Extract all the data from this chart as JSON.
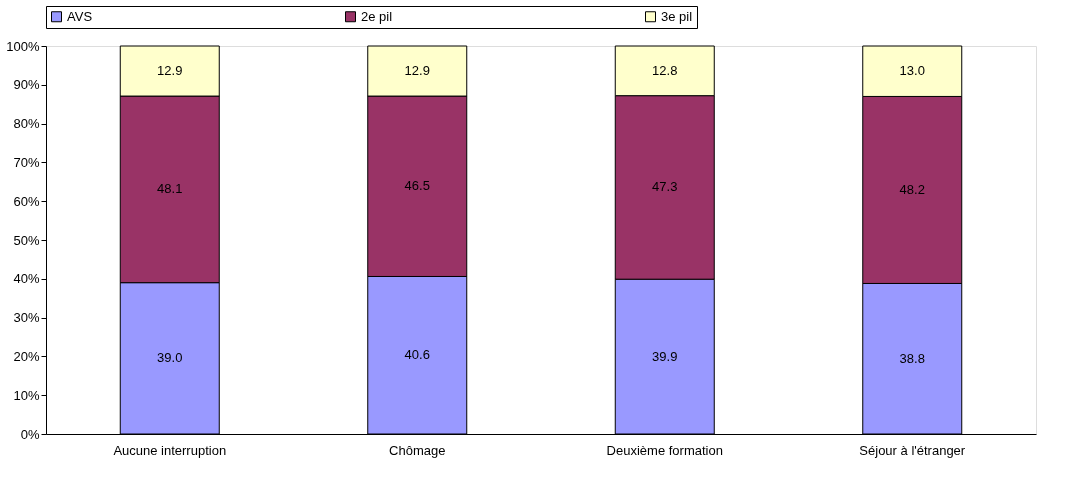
{
  "chart_data": {
    "type": "bar",
    "stacked": true,
    "categories": [
      "Aucune interruption",
      "Chômage",
      "Deuxième formation",
      "Séjour à l'étranger"
    ],
    "series": [
      {
        "name": "AVS",
        "color": "#9999ff",
        "values": [
          39.0,
          40.6,
          39.9,
          38.8
        ],
        "value_labels": [
          "39.0",
          "40.6",
          "39.9",
          "38.8"
        ]
      },
      {
        "name": "2e pil",
        "color": "#993366",
        "values": [
          48.1,
          46.5,
          47.3,
          48.2
        ],
        "value_labels": [
          "48.1",
          "46.5",
          "47.3",
          "48.2"
        ]
      },
      {
        "name": "3e pil",
        "color": "#ffffcc",
        "values": [
          12.9,
          12.9,
          12.8,
          13.0
        ],
        "value_labels": [
          "12.9",
          "12.9",
          "12.8",
          "13.0"
        ]
      }
    ],
    "ylim": [
      0,
      100
    ],
    "yticks": [
      {
        "value": 0,
        "label": "0%"
      },
      {
        "value": 10,
        "label": "10%"
      },
      {
        "value": 20,
        "label": "20%"
      },
      {
        "value": 30,
        "label": "30%"
      },
      {
        "value": 40,
        "label": "40%"
      },
      {
        "value": 50,
        "label": "50%"
      },
      {
        "value": 60,
        "label": "60%"
      },
      {
        "value": 70,
        "label": "70%"
      },
      {
        "value": 80,
        "label": "80%"
      },
      {
        "value": 90,
        "label": "90%"
      },
      {
        "value": 100,
        "label": "100%"
      }
    ],
    "grid": false,
    "legend": "top"
  }
}
